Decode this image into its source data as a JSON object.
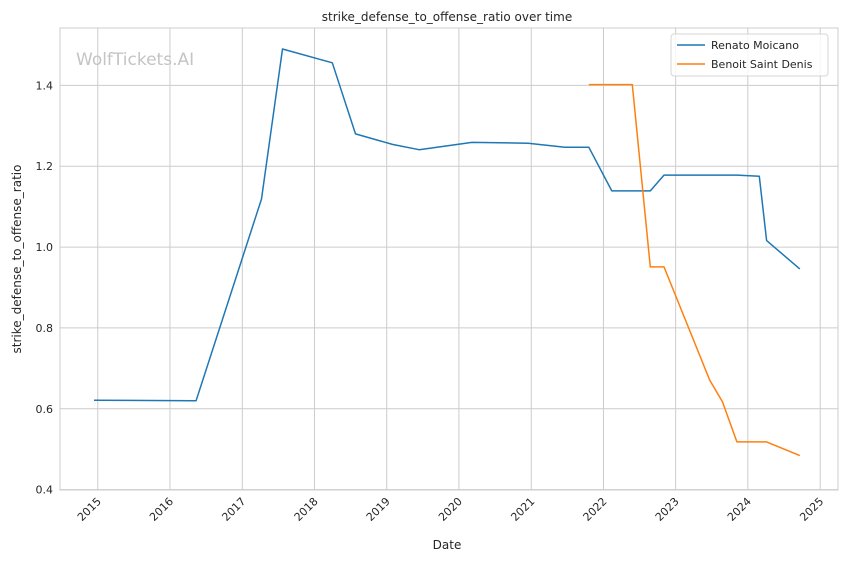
{
  "chart_data": {
    "type": "line",
    "title": "strike_defense_to_offense_ratio over time",
    "xlabel": "Date",
    "ylabel": "strike_defense_to_offense_ratio",
    "watermark": "WolfTickets.AI",
    "xlim": [
      "2014-06-24",
      "2025-04-01"
    ],
    "ylim": [
      0.399,
      1.542
    ],
    "x_ticks": [
      "2015",
      "2016",
      "2017",
      "2018",
      "2019",
      "2020",
      "2021",
      "2022",
      "2023",
      "2024",
      "2025"
    ],
    "y_ticks": [
      "0.4",
      "0.6",
      "0.8",
      "1.0",
      "1.2",
      "1.4"
    ],
    "grid": true,
    "legend_position": "top-right",
    "series": [
      {
        "name": "Renato Moicano",
        "color": "#1f77b4",
        "points": [
          [
            "2014-12-13",
            0.621
          ],
          [
            "2016-05-12",
            0.62
          ],
          [
            "2017-04-08",
            1.119
          ],
          [
            "2017-07-23",
            1.49
          ],
          [
            "2018-04-01",
            1.456
          ],
          [
            "2018-07-27",
            1.28
          ],
          [
            "2019-01-30",
            1.254
          ],
          [
            "2019-06-14",
            1.241
          ],
          [
            "2020-03-07",
            1.259
          ],
          [
            "2020-12-16",
            1.257
          ],
          [
            "2021-06-20",
            1.247
          ],
          [
            "2021-10-19",
            1.247
          ],
          [
            "2022-02-12",
            1.139
          ],
          [
            "2022-08-26",
            1.139
          ],
          [
            "2022-11-03",
            1.178
          ],
          [
            "2023-11-07",
            1.178
          ],
          [
            "2024-02-28",
            1.175
          ],
          [
            "2024-04-05",
            1.016
          ],
          [
            "2024-09-20",
            0.946
          ]
        ]
      },
      {
        "name": "Benoit Saint Denis",
        "color": "#ff7f0e",
        "points": [
          [
            "2021-10-19",
            1.402
          ],
          [
            "2022-05-27",
            1.402
          ],
          [
            "2022-08-26",
            0.951
          ],
          [
            "2022-11-03",
            0.951
          ],
          [
            "2023-06-22",
            0.671
          ],
          [
            "2023-08-26",
            0.617
          ],
          [
            "2023-11-07",
            0.518
          ],
          [
            "2024-04-05",
            0.518
          ],
          [
            "2024-09-20",
            0.484
          ]
        ]
      }
    ]
  }
}
